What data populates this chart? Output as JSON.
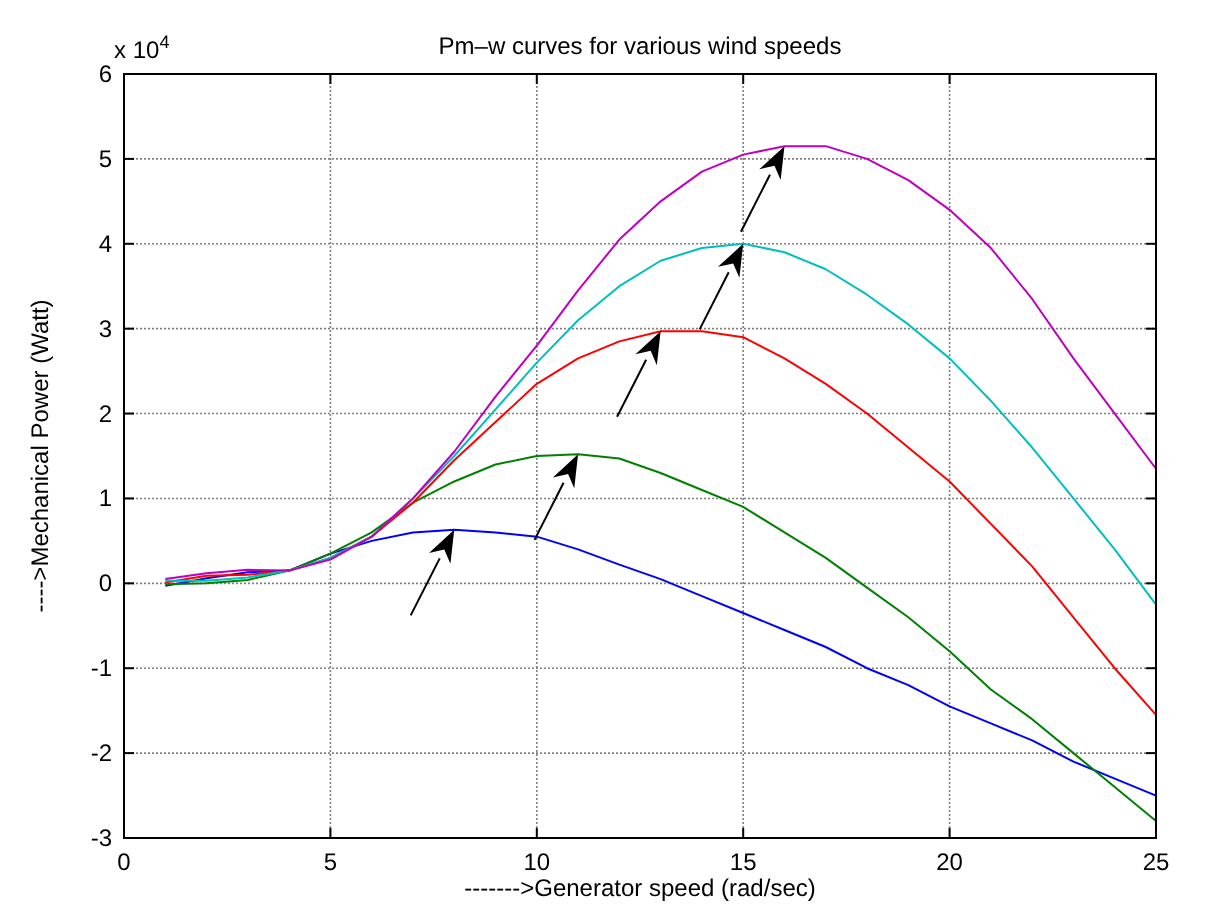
{
  "chart_data": {
    "type": "line",
    "title": "Pm–w curves for various wind speeds",
    "xlabel": "------->Generator speed (rad/sec)",
    "ylabel": "---->Mechanical Power (Watt)",
    "annotations": [
      "x 10$^{4}$"
    ],
    "x": [
      1,
      2,
      3,
      4,
      5,
      6,
      7,
      8,
      9,
      10,
      11,
      12,
      13,
      14,
      15,
      16,
      17,
      18,
      19,
      20,
      21,
      22,
      23,
      24,
      25
    ],
    "xlim": [
      0,
      25
    ],
    "xticks": [
      0,
      5,
      10,
      15,
      20,
      25
    ],
    "ylim": [
      -3,
      6
    ],
    "yticks": [
      -3,
      -2,
      -1,
      0,
      1,
      2,
      3,
      4,
      5,
      6
    ],
    "grid": true,
    "line_style": "solid",
    "series": [
      {
        "color": "#0000ff",
        "values": [
          -0.03,
          0.06,
          0.13,
          0.15,
          0.35,
          0.5,
          0.6,
          0.63,
          0.6,
          0.55,
          0.4,
          0.22,
          0.05,
          -0.15,
          -0.35,
          -0.55,
          -0.75,
          -1.0,
          -1.2,
          -1.45,
          -1.65,
          -1.85,
          -2.1,
          -2.3,
          -2.5
        ]
      },
      {
        "color": "#008000",
        "values": [
          -0.01,
          0.0,
          0.04,
          0.15,
          0.35,
          0.6,
          0.95,
          1.2,
          1.4,
          1.5,
          1.52,
          1.47,
          1.3,
          1.1,
          0.9,
          0.6,
          0.3,
          -0.05,
          -0.4,
          -0.8,
          -1.25,
          -1.6,
          -2.0,
          -2.4,
          -2.8
        ]
      },
      {
        "color": "#ff0000",
        "values": [
          0.01,
          0.09,
          0.1,
          0.15,
          0.3,
          0.55,
          0.95,
          1.45,
          1.9,
          2.35,
          2.65,
          2.85,
          2.97,
          2.97,
          2.9,
          2.65,
          2.35,
          2.0,
          1.6,
          1.2,
          0.7,
          0.2,
          -0.4,
          -1.0,
          -1.55
        ]
      },
      {
        "color": "#00bfbf",
        "values": [
          0.03,
          0.03,
          0.07,
          0.15,
          0.3,
          0.55,
          1.0,
          1.5,
          2.05,
          2.6,
          3.1,
          3.5,
          3.8,
          3.95,
          4.0,
          3.9,
          3.7,
          3.4,
          3.05,
          2.65,
          2.15,
          1.6,
          1.0,
          0.4,
          -0.25
        ]
      },
      {
        "color": "#bf00bf",
        "values": [
          0.05,
          0.12,
          0.16,
          0.15,
          0.28,
          0.55,
          1.0,
          1.55,
          2.2,
          2.8,
          3.45,
          4.05,
          4.5,
          4.85,
          5.05,
          5.15,
          5.15,
          5.0,
          4.75,
          4.4,
          3.95,
          3.35,
          2.65,
          2.0,
          1.35
        ]
      }
    ]
  }
}
